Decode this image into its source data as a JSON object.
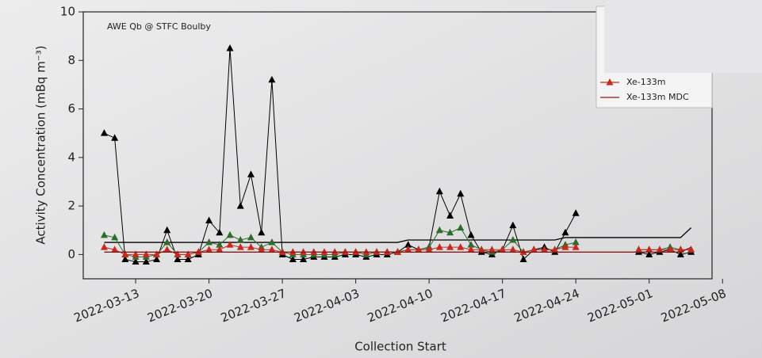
{
  "chart_data": {
    "type": "line",
    "title": "AWE Qb @ STFC Boulby",
    "x_label": "Collection Start",
    "y_label": "Activity Concentration (mBq m⁻³)",
    "x": [
      "2022-03-10",
      "2022-03-11",
      "2022-03-12",
      "2022-03-13",
      "2022-03-14",
      "2022-03-15",
      "2022-03-16",
      "2022-03-17",
      "2022-03-18",
      "2022-03-19",
      "2022-03-20",
      "2022-03-21",
      "2022-03-22",
      "2022-03-23",
      "2022-03-24",
      "2022-03-25",
      "2022-03-26",
      "2022-03-27",
      "2022-03-28",
      "2022-03-29",
      "2022-03-30",
      "2022-03-31",
      "2022-04-01",
      "2022-04-02",
      "2022-04-03",
      "2022-04-04",
      "2022-04-05",
      "2022-04-06",
      "2022-04-07",
      "2022-04-08",
      "2022-04-09",
      "2022-04-10",
      "2022-04-11",
      "2022-04-12",
      "2022-04-13",
      "2022-04-14",
      "2022-04-15",
      "2022-04-16",
      "2022-04-17",
      "2022-04-18",
      "2022-04-19",
      "2022-04-20",
      "2022-04-21",
      "2022-04-22",
      "2022-04-23",
      "2022-04-24",
      "2022-04-25",
      "2022-04-26",
      "2022-04-27",
      "2022-04-28",
      "2022-04-29",
      "2022-04-30",
      "2022-05-01",
      "2022-05-02",
      "2022-05-03",
      "2022-05-04",
      "2022-05-05"
    ],
    "series": [
      {
        "color": "#000000",
        "marker": "triangle",
        "values": [
          5.0,
          4.8,
          -0.2,
          -0.3,
          -0.3,
          -0.2,
          1.0,
          -0.2,
          -0.2,
          0.0,
          1.4,
          0.9,
          8.5,
          2.0,
          3.3,
          0.9,
          7.2,
          0.0,
          -0.2,
          -0.2,
          -0.1,
          -0.1,
          -0.1,
          0.0,
          0.0,
          -0.1,
          0.0,
          0.0,
          0.1,
          0.4,
          0.2,
          0.3,
          2.6,
          1.6,
          2.5,
          0.8,
          0.1,
          0.0,
          0.2,
          1.2,
          -0.2,
          0.2,
          0.3,
          0.1,
          0.9,
          1.7,
          null,
          null,
          null,
          null,
          null,
          0.1,
          0.0,
          0.1,
          0.2,
          0.0,
          0.1
        ]
      },
      {
        "color": "#000000",
        "values": [
          0.5,
          0.5,
          0.5,
          0.5,
          0.5,
          0.5,
          0.5,
          0.5,
          0.5,
          0.5,
          0.5,
          0.5,
          0.5,
          0.5,
          0.5,
          0.5,
          0.5,
          0.5,
          0.5,
          0.5,
          0.5,
          0.5,
          0.5,
          0.5,
          0.5,
          0.5,
          0.5,
          0.5,
          0.5,
          0.6,
          0.6,
          0.6,
          0.6,
          0.6,
          0.6,
          0.6,
          0.6,
          0.6,
          0.6,
          0.6,
          0.6,
          0.6,
          0.6,
          0.6,
          0.7,
          0.7,
          0.7,
          0.7,
          0.7,
          0.7,
          0.7,
          0.7,
          0.7,
          0.7,
          0.7,
          0.7,
          1.1
        ]
      },
      {
        "color": "#2e6b2e",
        "marker": "triangle",
        "values": [
          0.8,
          0.7,
          0.0,
          -0.1,
          -0.1,
          0.0,
          0.5,
          0.0,
          0.0,
          0.1,
          0.5,
          0.4,
          0.8,
          0.6,
          0.7,
          0.3,
          0.5,
          0.1,
          0.0,
          0.0,
          0.0,
          0.0,
          0.0,
          0.1,
          0.1,
          0.0,
          0.1,
          0.1,
          0.1,
          0.2,
          0.2,
          0.3,
          1.0,
          0.9,
          1.1,
          0.4,
          0.2,
          0.1,
          0.2,
          0.6,
          0.1,
          0.2,
          0.2,
          0.2,
          0.4,
          0.5,
          null,
          null,
          null,
          null,
          null,
          0.2,
          0.2,
          0.2,
          0.3,
          0.2,
          0.2
        ]
      },
      {
        "name": "Xe-133m",
        "color": "#c8281e",
        "marker": "triangle",
        "values": [
          0.3,
          0.2,
          0.0,
          0.0,
          0.0,
          0.0,
          0.2,
          0.0,
          0.0,
          0.1,
          0.2,
          0.2,
          0.4,
          0.3,
          0.3,
          0.2,
          0.2,
          0.1,
          0.1,
          0.1,
          0.1,
          0.1,
          0.1,
          0.1,
          0.1,
          0.1,
          0.1,
          0.1,
          0.1,
          0.2,
          0.2,
          0.2,
          0.3,
          0.3,
          0.3,
          0.2,
          0.2,
          0.2,
          0.2,
          0.2,
          0.1,
          0.2,
          0.2,
          0.2,
          0.3,
          0.3,
          null,
          null,
          null,
          null,
          null,
          0.2,
          0.2,
          0.2,
          0.2,
          0.2,
          0.2
        ]
      },
      {
        "name": "Xe-133m MDC",
        "color": "#8a1a1a",
        "values": [
          0.1,
          0.1,
          0.1,
          0.1,
          0.1,
          0.1,
          0.1,
          0.1,
          0.1,
          0.1,
          0.1,
          0.1,
          0.1,
          0.1,
          0.1,
          0.1,
          0.1,
          0.1,
          0.1,
          0.1,
          0.1,
          0.1,
          0.1,
          0.1,
          0.1,
          0.1,
          0.1,
          0.1,
          0.1,
          0.1,
          0.1,
          0.1,
          0.1,
          0.1,
          0.1,
          0.1,
          0.1,
          0.1,
          0.1,
          0.1,
          0.1,
          0.1,
          0.1,
          0.1,
          0.1,
          0.1,
          0.1,
          0.1,
          0.1,
          0.1,
          0.1,
          0.1,
          0.1,
          0.1,
          0.1,
          0.1,
          0.3
        ]
      }
    ],
    "xlim": [
      "2022-03-08",
      "2022-05-07"
    ],
    "xticks": [
      "2022-03-13",
      "2022-03-20",
      "2022-03-27",
      "2022-04-03",
      "2022-04-10",
      "2022-04-17",
      "2022-04-24",
      "2022-05-01",
      "2022-05-08"
    ],
    "ylim": [
      -1,
      10
    ],
    "yticks": [
      0,
      2,
      4,
      6,
      8,
      10
    ],
    "legend": "upper right"
  }
}
